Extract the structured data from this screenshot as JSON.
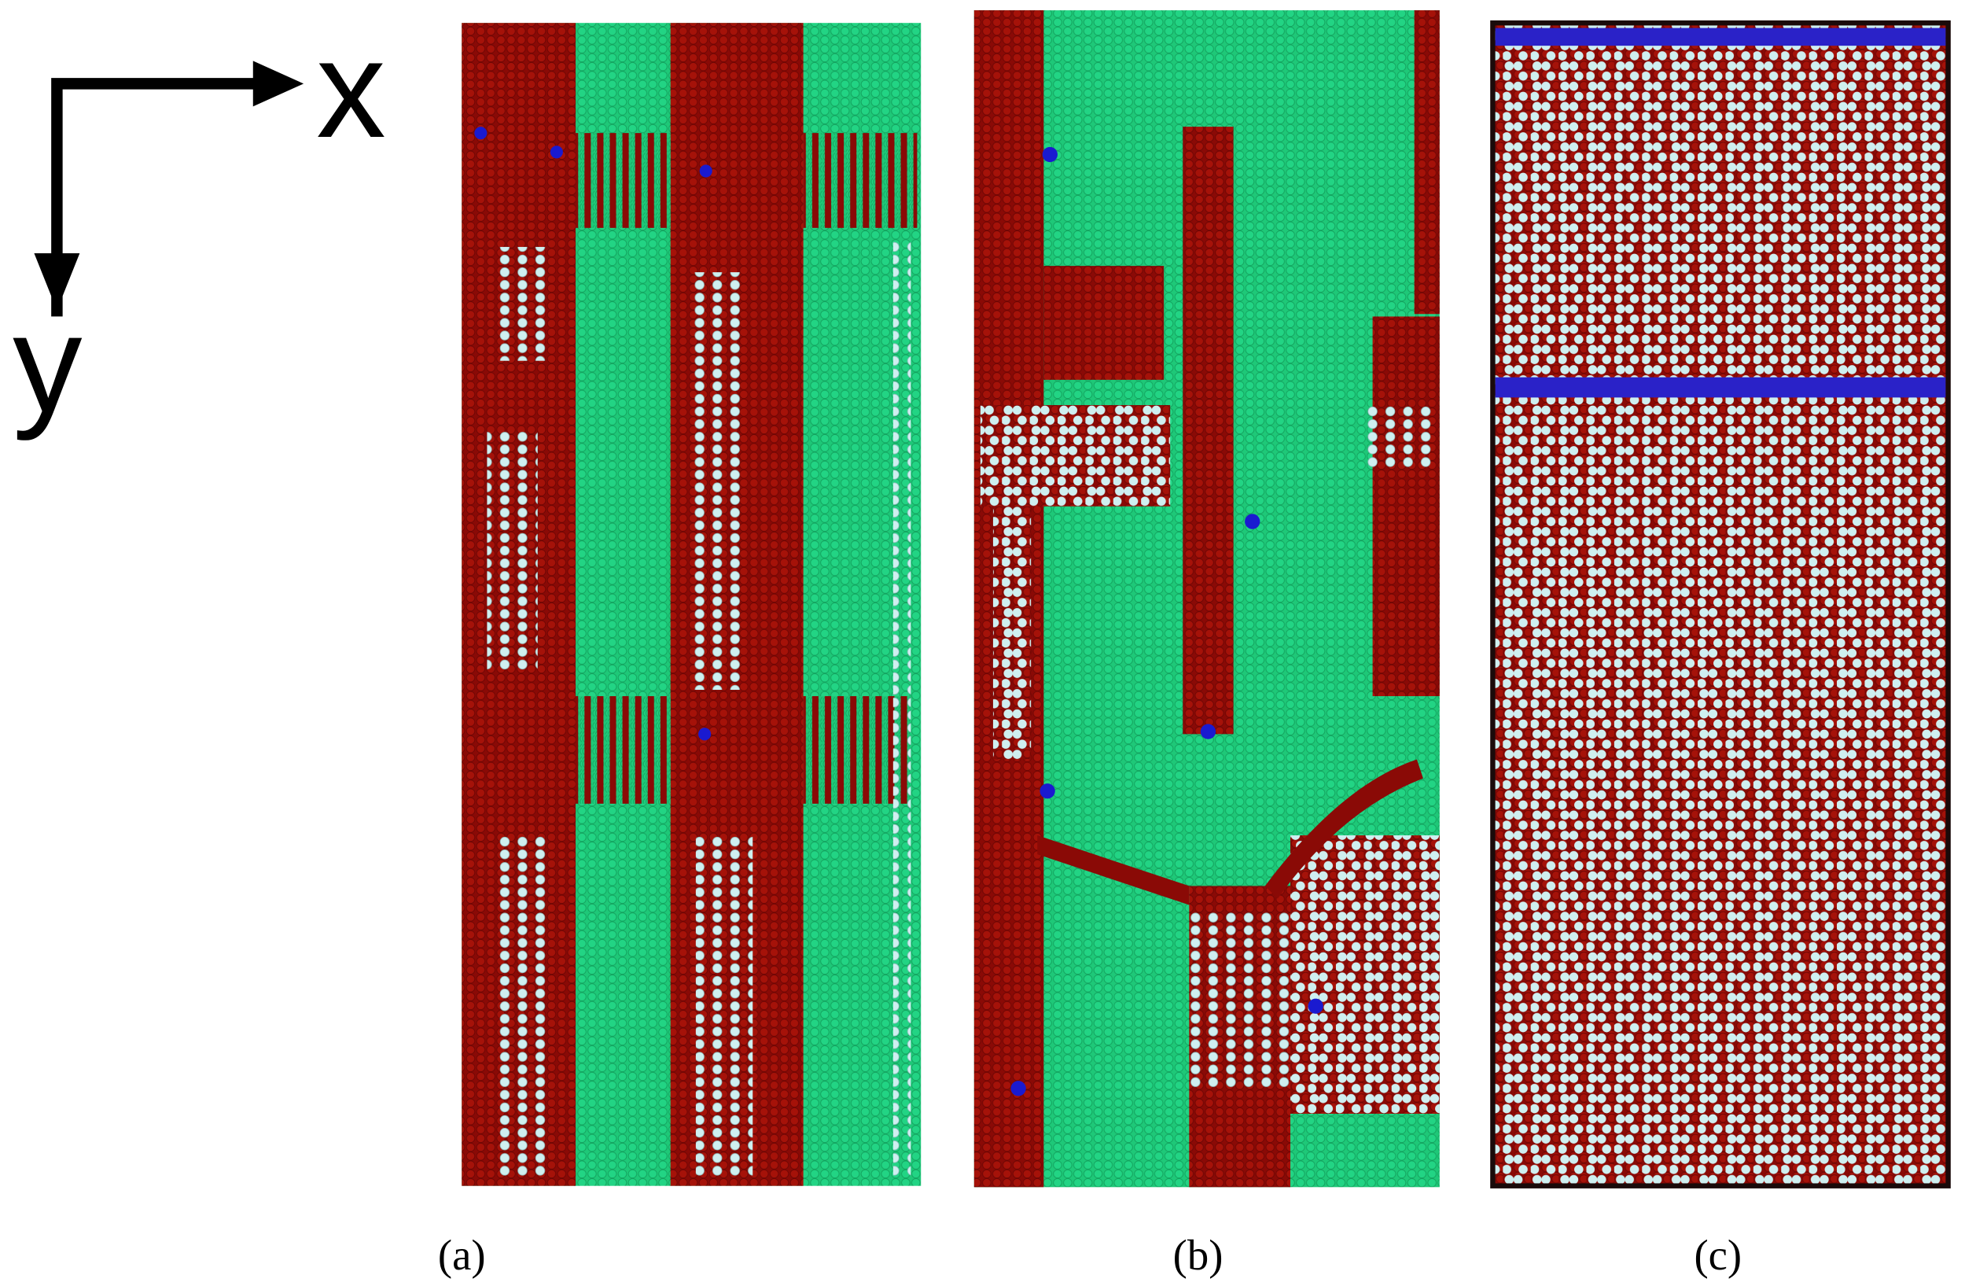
{
  "axes": {
    "x_label": "x",
    "y_label": "y"
  },
  "panels": [
    {
      "label": "(a)"
    },
    {
      "label": "(b)"
    },
    {
      "label": "(c)"
    }
  ]
}
